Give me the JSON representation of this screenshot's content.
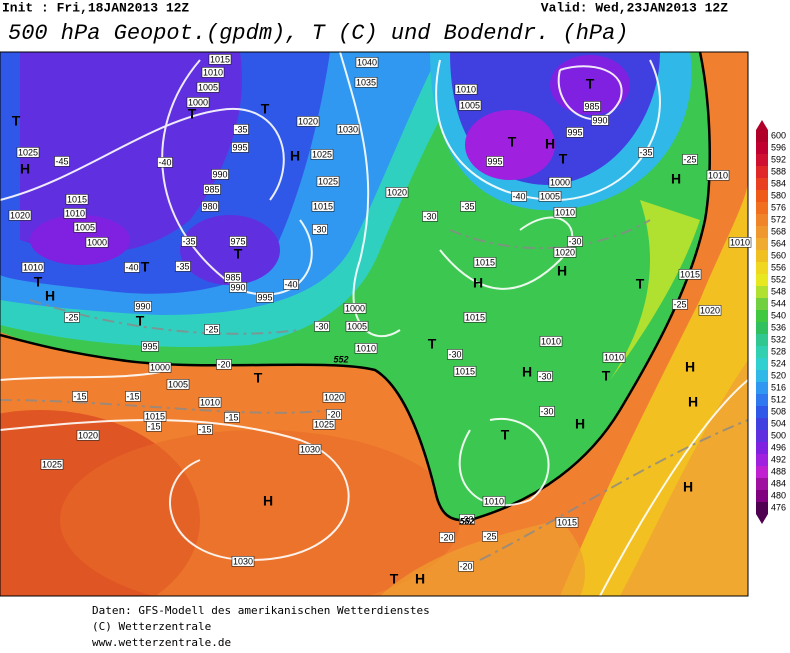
{
  "header": {
    "init": "Init : Fri,18JAN2013 12Z",
    "valid": "Valid: Wed,23JAN2013 12Z",
    "title": "500 hPa Geopot.(gpdm), T (C) und Bodendr. (hPa)"
  },
  "colorbar": {
    "ticks": [
      600,
      596,
      592,
      588,
      584,
      580,
      576,
      572,
      568,
      564,
      560,
      556,
      552,
      548,
      544,
      540,
      536,
      532,
      528,
      524,
      520,
      516,
      512,
      508,
      504,
      500,
      496,
      492,
      488,
      484,
      480,
      476
    ],
    "colors": [
      "#b0002a",
      "#c00030",
      "#d01030",
      "#e02828",
      "#e84020",
      "#f05a18",
      "#f07020",
      "#f08428",
      "#f09830",
      "#f0ac30",
      "#f0c020",
      "#f0d820",
      "#e8e820",
      "#b0e030",
      "#70d040",
      "#40c840",
      "#30c060",
      "#30c890",
      "#30d0b0",
      "#30d0d0",
      "#30b8e8",
      "#3098f0",
      "#3078f0",
      "#3058e8",
      "#4040e0",
      "#6030e0",
      "#8020e0",
      "#a020e0",
      "#c020d0",
      "#a010a0",
      "#800080",
      "#500050"
    ]
  },
  "map": {
    "pressure_labels": [
      "1015",
      "1010",
      "1005",
      "1000",
      "995",
      "990",
      "985",
      "980",
      "975",
      "985",
      "990",
      "995",
      "1040",
      "1035",
      "1020",
      "1030",
      "1025",
      "1025",
      "1015",
      "1020",
      "1010",
      "1005",
      "995",
      "985",
      "990",
      "995",
      "1000",
      "1005",
      "1010",
      "1025",
      "1020",
      "1015",
      "1010",
      "1005",
      "1000",
      "1010",
      "990",
      "995",
      "1000",
      "1005",
      "1010",
      "1015",
      "1020",
      "1015",
      "1015",
      "1010",
      "1010",
      "1015",
      "1020",
      "1010",
      "1010",
      "1000",
      "1005",
      "1010",
      "1015",
      "1020",
      "1025",
      "1020",
      "1025",
      "1030",
      "1030",
      "1010",
      "1015"
    ],
    "temperature_labels": [
      "-45",
      "-40",
      "-35",
      "-30",
      "-35",
      "-35",
      "-40",
      "-40",
      "-30",
      "-25",
      "-25",
      "-20",
      "-15",
      "-15",
      "-15",
      "-15",
      "-15",
      "-20",
      "-30",
      "-35",
      "-40",
      "-35",
      "-25",
      "-30",
      "-25",
      "-30",
      "-30",
      "-30",
      "-20",
      "-25",
      "-20",
      "-30"
    ],
    "highs": [
      "H",
      "H",
      "H",
      "H",
      "H",
      "H",
      "H",
      "H",
      "H",
      "H",
      "H",
      "H",
      "H",
      "H"
    ],
    "lows": [
      "T",
      "T",
      "T",
      "T",
      "T",
      "T",
      "T",
      "T",
      "T",
      "T",
      "T",
      "T",
      "T",
      "T",
      "T",
      "T"
    ],
    "contour_labels": [
      "552",
      "552"
    ]
  },
  "footer": {
    "lines": [
      "Daten: GFS-Modell des amerikanischen Wetterdienstes",
      "(C) Wetterzentrale",
      "www.wetterzentrale.de"
    ]
  }
}
